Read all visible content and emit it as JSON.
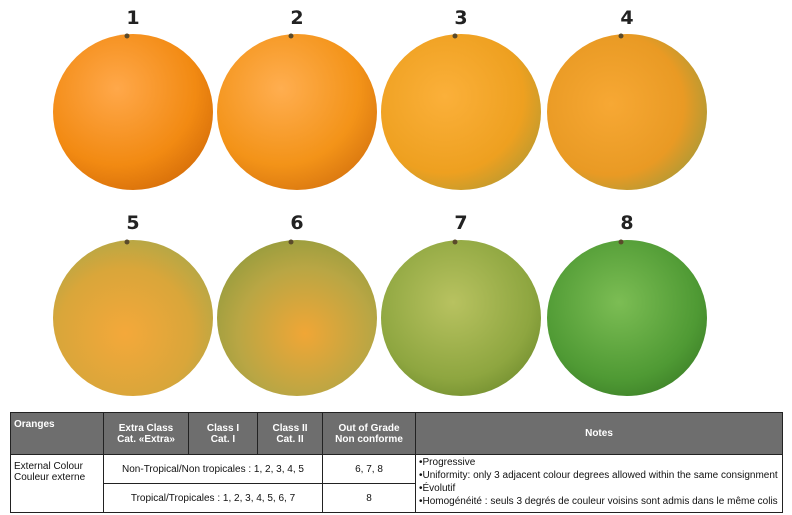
{
  "figure": {
    "labels": [
      "1",
      "2",
      "3",
      "4",
      "5",
      "6",
      "7",
      "8"
    ]
  },
  "table": {
    "header": {
      "oranges": "Oranges",
      "extra": [
        "Extra Class",
        "Cat. «Extra»"
      ],
      "class1": [
        "Class I",
        "Cat. I"
      ],
      "class2": [
        "Class II",
        "Cat. II"
      ],
      "out": [
        "Out of Grade",
        "Non conforme"
      ],
      "notes": "Notes"
    },
    "row_label": [
      "External Colour",
      "Couleur externe"
    ],
    "rows": [
      {
        "classes": "Non-Tropical/Non tropicales : 1, 2, 3, 4, 5",
        "out": "6, 7, 8"
      },
      {
        "classes": "Tropical/Tropicales : 1, 2, 3, 4, 5, 6, 7",
        "out": "8"
      }
    ],
    "notes": [
      "•Progressive",
      "•Uniformity: only 3 adjacent colour degrees allowed within the same consignment",
      "•Évolutif",
      "•Homogénéité : seuls 3 degrés de couleur voisins sont admis dans le même colis"
    ]
  }
}
